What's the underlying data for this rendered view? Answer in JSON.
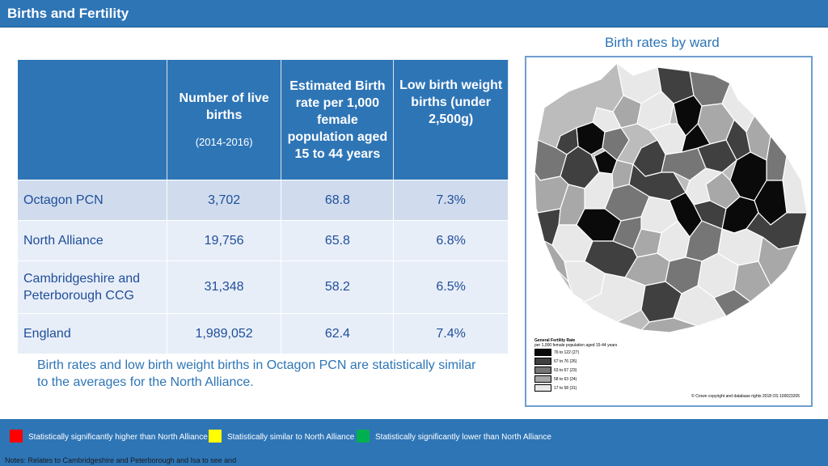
{
  "header": {
    "title": "Births and Fertility"
  },
  "map": {
    "caption": "Birth rates by ward",
    "legend": {
      "title": "General Fertility Rate",
      "subtitle": "per 1,000 female population aged 15-44 years",
      "items": [
        {
          "label": "76  to  122  (27)",
          "color": "#0a0a0a"
        },
        {
          "label": "67  to    76  (26)",
          "color": "#404040"
        },
        {
          "label": "63  to    67  (23)",
          "color": "#767676"
        },
        {
          "label": "58  to    63  (24)",
          "color": "#a8a8a8"
        },
        {
          "label": "17  to    58  (31)",
          "color": "#e8e8e8"
        }
      ]
    },
    "copyright": "© Crown copyright and database rights 2018 OS 100023205"
  },
  "table": {
    "headers": {
      "births": "Number of live births",
      "births_note": "(2014-2016)",
      "rate": "Estimated Birth rate per 1,000 female population aged 15 to 44 years",
      "low_weight": "Low birth weight births (under 2,500g)"
    },
    "rows": [
      {
        "name": "Octagon PCN",
        "births": "3,702",
        "rate": "68.8",
        "low_weight": "7.3%"
      },
      {
        "name": "North Alliance",
        "births": "19,756",
        "rate": "65.8",
        "low_weight": "6.8%"
      },
      {
        "name": "Cambridgeshire and Peterborough CCG",
        "births": "31,348",
        "rate": "58.2",
        "low_weight": "6.5%"
      },
      {
        "name": "England",
        "births": "1,989,052",
        "rate": "62.4",
        "low_weight": "7.4%"
      }
    ]
  },
  "summary": "Birth rates and low birth weight births in Octagon PCN are statistically similar to the averages for the North Alliance.",
  "key": [
    {
      "label": "Statistically significantly higher than North Alliance",
      "color": "#ff0000"
    },
    {
      "label": "Statistically similar to North Alliance",
      "color": "#ffff00"
    },
    {
      "label": "Statistically significantly lower than North Alliance",
      "color": "#00b050"
    }
  ],
  "notes": "Notes: Relates to Cambridgeshire and Peterborough and Isa to see and"
}
